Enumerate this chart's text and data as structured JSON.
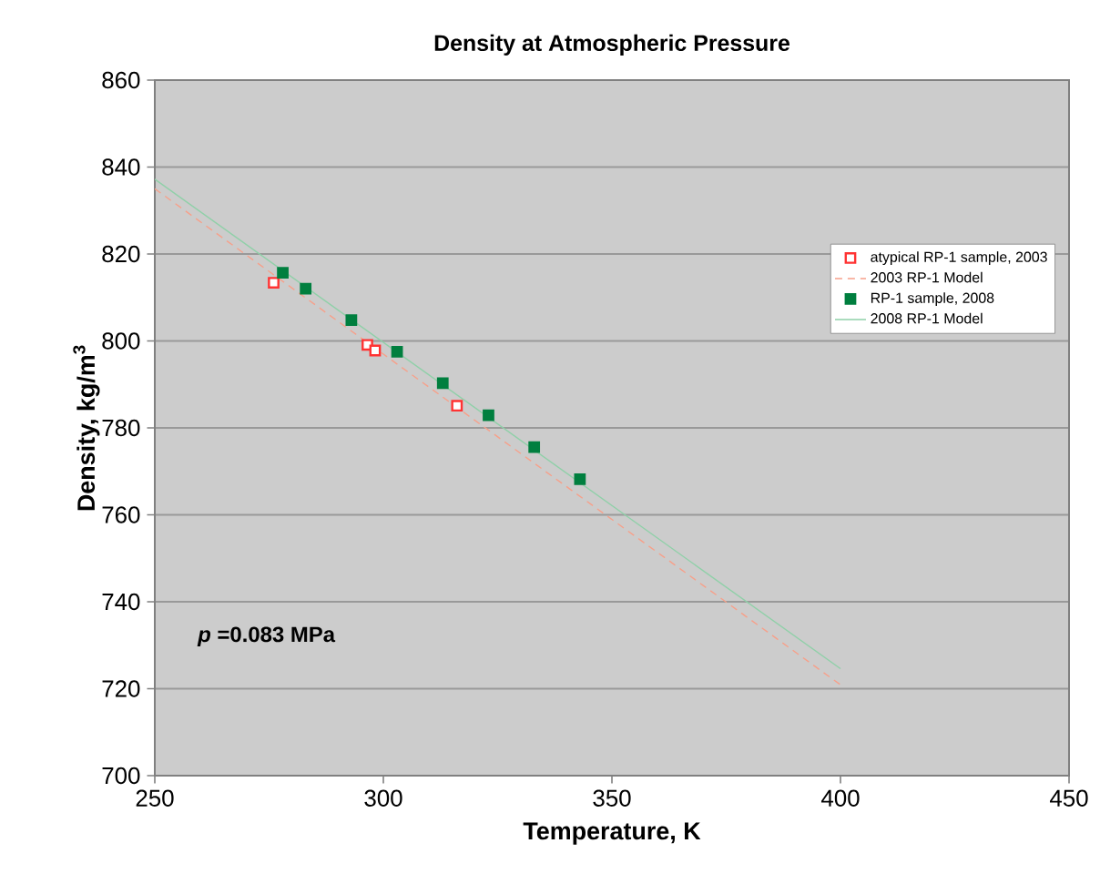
{
  "chart_data": {
    "type": "scatter",
    "title": "Density at Atmospheric Pressure",
    "xlabel": "Temperature, K",
    "ylabel": "Density, kg/m$^{3}$",
    "annotations": [
      "*p* =0.083 MPa"
    ],
    "series": [
      {
        "name": "atypical RP-1 sample, 2003",
        "color": "#ff3333",
        "marker": "square",
        "x": [
          276.0,
          296.5,
          298.2,
          316.1
        ],
        "values": [
          813.4,
          799.1,
          797.8,
          785.1
        ]
      },
      {
        "name": "2003 RP-1 Model",
        "type": "line",
        "color": "#f7a08a",
        "line_style": "dashed",
        "x": [
          250,
          400
        ],
        "values": [
          835.0,
          720.9
        ]
      },
      {
        "name": "RP-1 sample, 2008",
        "color": "#007f3f",
        "marker": "square",
        "x": [
          278,
          283,
          293,
          303,
          313,
          323,
          333,
          343
        ],
        "values": [
          815.7,
          812.0,
          804.8,
          797.5,
          790.3,
          782.9,
          775.6,
          768.2
        ]
      },
      {
        "name": "2008 RP-1 Model",
        "type": "line",
        "color": "#8fd0a8",
        "line_style": "solid",
        "x": [
          250,
          400
        ],
        "values": [
          837.2,
          724.6
        ]
      }
    ],
    "xlim": [
      250,
      450
    ],
    "xticks": [
      250,
      300,
      350,
      400,
      450
    ],
    "ylim": [
      700,
      860
    ],
    "yticks": [
      700,
      720,
      740,
      760,
      780,
      800,
      820,
      840,
      860
    ],
    "grid": "y",
    "legend": "right"
  }
}
